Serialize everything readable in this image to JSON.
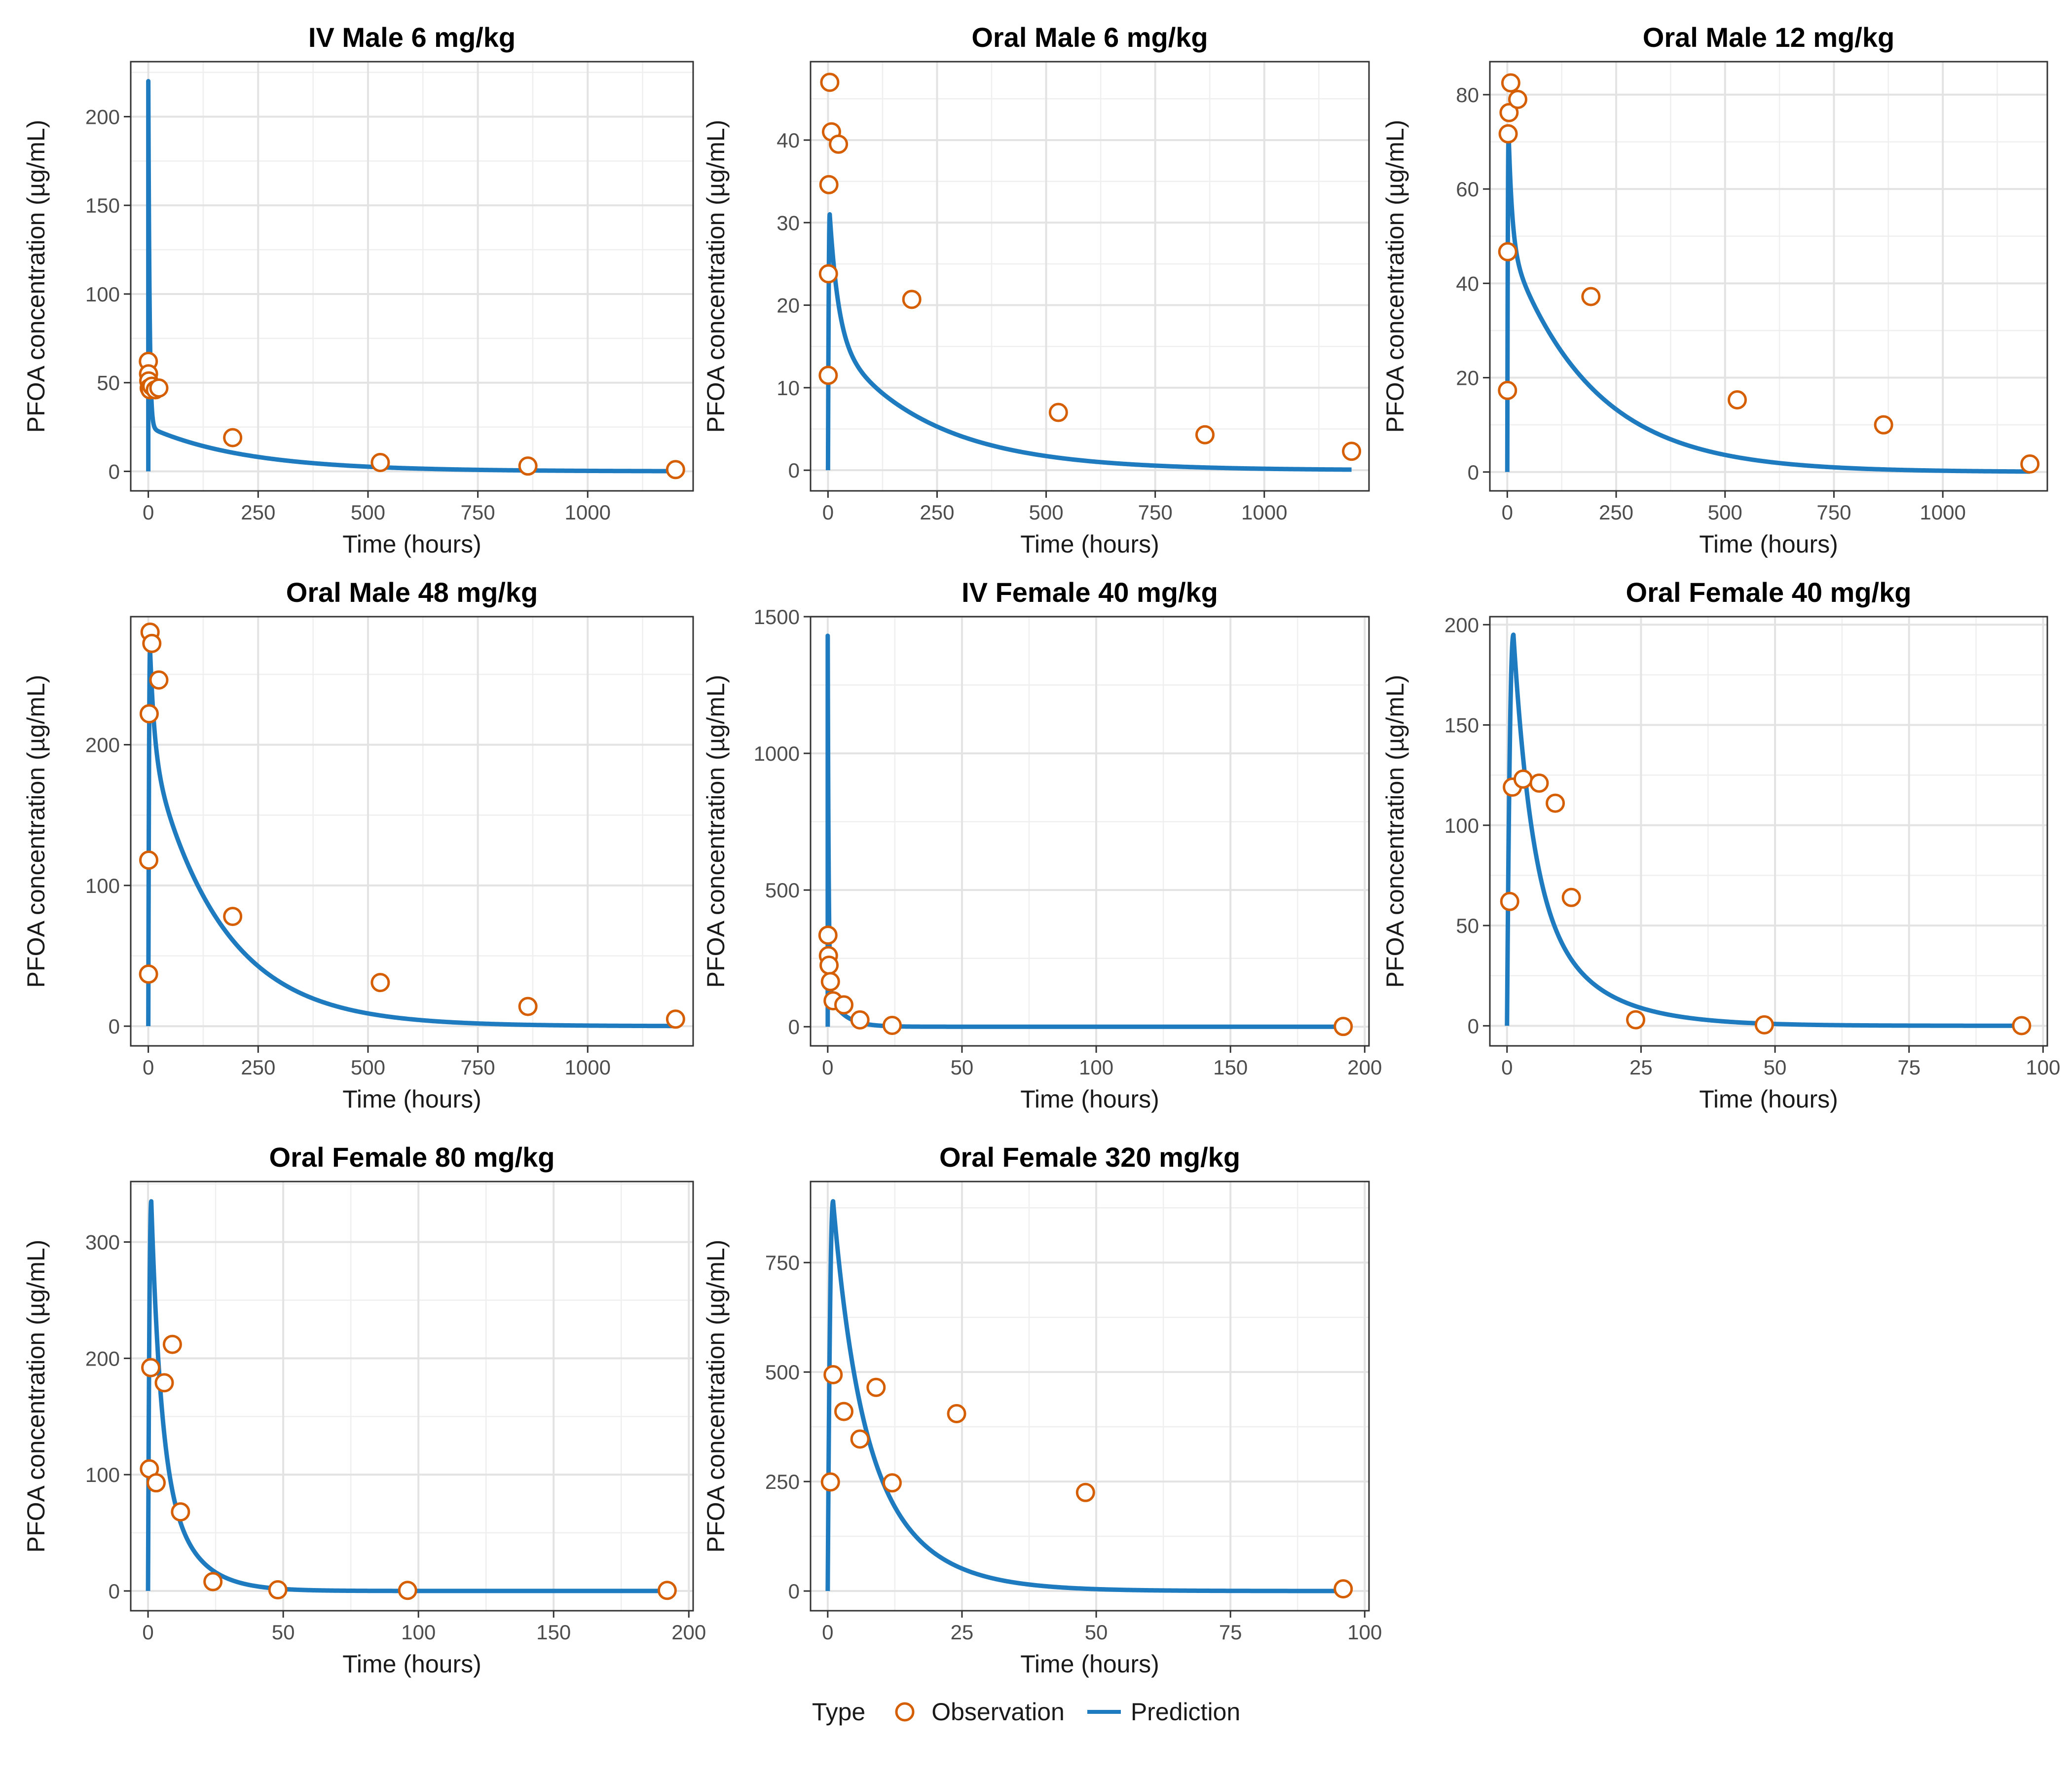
{
  "colors": {
    "observation": "#D55E00",
    "prediction": "#1F7BBF",
    "grid": "#E3E3E3",
    "panel_border": "#333333",
    "text": "#1a1a1a",
    "tick_text": "#4d4d4d"
  },
  "legend": {
    "title": "Type",
    "observation_label": "Observation",
    "prediction_label": "Prediction",
    "placement": "bottom"
  },
  "chart_data": [
    {
      "type": "scatter+line",
      "title": "IV Male 6 mg/kg",
      "xlabel": "Time (hours)",
      "ylabel": "PFOA concentration (µg/mL)",
      "xlim": [
        -40,
        1240
      ],
      "ylim": [
        -11,
        231
      ],
      "xticks": [
        0,
        250,
        500,
        750,
        1000,
        1250
      ],
      "yticks": [
        0,
        50,
        100,
        150,
        200
      ],
      "observations": [
        [
          0.08,
          62
        ],
        [
          0.5,
          55
        ],
        [
          1,
          51
        ],
        [
          2,
          47
        ],
        [
          4,
          46
        ],
        [
          8,
          48
        ],
        [
          16,
          46
        ],
        [
          24,
          47
        ],
        [
          192,
          19
        ],
        [
          528,
          5
        ],
        [
          864,
          3
        ],
        [
          1200,
          1
        ]
      ],
      "prediction": {
        "route": "iv",
        "c0": 220,
        "a": 195,
        "alpha": 0.35,
        "b": 25,
        "beta": 0.0045,
        "tmax": 1200
      }
    },
    {
      "type": "scatter+line",
      "title": "Oral Male 6 mg/kg",
      "xlabel": "Time (hours)",
      "ylabel": "PFOA concentration (µg/mL)",
      "xlim": [
        -40,
        1240
      ],
      "ylim": [
        -2.5,
        49.5
      ],
      "xticks": [
        0,
        250,
        500,
        750,
        1000,
        1250
      ],
      "yticks": [
        0,
        10,
        20,
        30,
        40
      ],
      "observations": [
        [
          0.5,
          11.5
        ],
        [
          1,
          23.8
        ],
        [
          2,
          34.6
        ],
        [
          4,
          47
        ],
        [
          8,
          41
        ],
        [
          24,
          39.5
        ],
        [
          192,
          20.7
        ],
        [
          528,
          7
        ],
        [
          864,
          4.3
        ],
        [
          1200,
          2.3
        ]
      ],
      "prediction": {
        "route": "oral",
        "peak": 31,
        "tpeak": 4,
        "a": 15,
        "alpha": 0.05,
        "b": 16,
        "beta": 0.0045,
        "tmax": 1200
      }
    },
    {
      "type": "scatter+line",
      "title": "Oral Male 12 mg/kg",
      "xlabel": "Time (hours)",
      "ylabel": "PFOA concentration (µg/mL)",
      "xlim": [
        -40,
        1240
      ],
      "ylim": [
        -4,
        87
      ],
      "xticks": [
        0,
        250,
        500,
        750,
        1000,
        1250
      ],
      "yticks": [
        0,
        20,
        40,
        60,
        80
      ],
      "observations": [
        [
          0.5,
          17.3
        ],
        [
          1,
          46.7
        ],
        [
          2,
          71.7
        ],
        [
          4,
          76.2
        ],
        [
          8,
          82.5
        ],
        [
          24,
          79
        ],
        [
          192,
          37.2
        ],
        [
          528,
          15.3
        ],
        [
          864,
          10
        ],
        [
          1200,
          1.7
        ]
      ],
      "prediction": {
        "route": "oral",
        "peak": 72,
        "tpeak": 3,
        "a": 24,
        "alpha": 0.12,
        "b": 48,
        "beta": 0.0052,
        "tmax": 1200
      }
    },
    {
      "type": "scatter+line",
      "title": "Oral Male 48 mg/kg",
      "xlabel": "Time (hours)",
      "ylabel": "PFOA concentration (µg/mL)",
      "xlim": [
        -40,
        1240
      ],
      "ylim": [
        -14,
        291
      ],
      "xticks": [
        0,
        250,
        500,
        750,
        1000,
        1250
      ],
      "yticks": [
        0,
        100,
        200
      ],
      "observations": [
        [
          0.5,
          37
        ],
        [
          1,
          118
        ],
        [
          2,
          222
        ],
        [
          4,
          280
        ],
        [
          8,
          272
        ],
        [
          24,
          246
        ],
        [
          192,
          78
        ],
        [
          528,
          31
        ],
        [
          864,
          14
        ],
        [
          1200,
          5
        ]
      ],
      "prediction": {
        "route": "oral",
        "peak": 268,
        "tpeak": 4,
        "a": 72,
        "alpha": 0.1,
        "b": 196,
        "beta": 0.0062,
        "tmax": 1200
      }
    },
    {
      "type": "scatter+line",
      "title": "IV Female 40 mg/kg",
      "xlabel": "Time (hours)",
      "ylabel": "PFOA concentration (µg/mL)",
      "xlim": [
        -6.4,
        201.6
      ],
      "ylim": [
        -70,
        1500
      ],
      "xticks": [
        0,
        50,
        100,
        150,
        200
      ],
      "yticks": [
        0,
        500,
        1000,
        1500
      ],
      "observations": [
        [
          0.08,
          335
        ],
        [
          0.25,
          260
        ],
        [
          0.5,
          225
        ],
        [
          1,
          165
        ],
        [
          2,
          95
        ],
        [
          6,
          80
        ],
        [
          12,
          25
        ],
        [
          24,
          5
        ],
        [
          192,
          1
        ]
      ],
      "prediction": {
        "route": "iv",
        "c0": 1430,
        "a": 1300,
        "alpha": 3.0,
        "b": 130,
        "beta": 0.18,
        "tmax": 192
      }
    },
    {
      "type": "scatter+line",
      "title": "Oral Female 40 mg/kg",
      "xlabel": "Time (hours)",
      "ylabel": "PFOA concentration (µg/mL)",
      "xlim": [
        -3.2,
        100.8
      ],
      "ylim": [
        -10,
        204
      ],
      "xticks": [
        0,
        25,
        50,
        75,
        100
      ],
      "yticks": [
        0,
        50,
        100,
        150,
        200
      ],
      "observations": [
        [
          0.5,
          62
        ],
        [
          1,
          119
        ],
        [
          3,
          123
        ],
        [
          6,
          121
        ],
        [
          9,
          111
        ],
        [
          12,
          64
        ],
        [
          24,
          3
        ],
        [
          48,
          0.5
        ],
        [
          96,
          0.1
        ]
      ],
      "prediction": {
        "route": "oral",
        "peak": 195,
        "tpeak": 1.2,
        "a": 120,
        "alpha": 0.3,
        "b": 75,
        "beta": 0.09,
        "tmax": 96
      }
    },
    {
      "type": "scatter+line",
      "title": "Oral Female 80 mg/kg",
      "xlabel": "Time (hours)",
      "ylabel": "PFOA concentration (µg/mL)",
      "xlim": [
        -6.4,
        201.6
      ],
      "ylim": [
        -17,
        352
      ],
      "xticks": [
        0,
        50,
        100,
        150,
        200
      ],
      "yticks": [
        0,
        100,
        200,
        300
      ],
      "observations": [
        [
          0.5,
          105
        ],
        [
          1,
          192
        ],
        [
          3,
          93
        ],
        [
          6,
          179
        ],
        [
          9,
          212
        ],
        [
          12,
          68
        ],
        [
          24,
          8
        ],
        [
          48,
          1
        ],
        [
          96,
          0.5
        ],
        [
          192,
          0.5
        ]
      ],
      "prediction": {
        "route": "oral",
        "peak": 335,
        "tpeak": 1.2,
        "a": 200,
        "alpha": 0.3,
        "b": 135,
        "beta": 0.09,
        "tmax": 192
      }
    },
    {
      "type": "scatter+line",
      "title": "Oral Female 320 mg/kg",
      "xlabel": "Time (hours)",
      "ylabel": "PFOA concentration (µg/mL)",
      "xlim": [
        -3.2,
        100.8
      ],
      "ylim": [
        -45,
        935
      ],
      "xticks": [
        0,
        25,
        50,
        75,
        100
      ],
      "yticks": [
        0,
        250,
        500,
        750
      ],
      "observations": [
        [
          0.5,
          249
        ],
        [
          1,
          494
        ],
        [
          3,
          410
        ],
        [
          6,
          347
        ],
        [
          9,
          465
        ],
        [
          12,
          247
        ],
        [
          24,
          405
        ],
        [
          48,
          225
        ],
        [
          96,
          5
        ]
      ],
      "prediction": {
        "route": "oral",
        "peak": 890,
        "tpeak": 1.0,
        "a": 360,
        "alpha": 0.25,
        "b": 530,
        "beta": 0.098,
        "tmax": 96
      }
    }
  ]
}
